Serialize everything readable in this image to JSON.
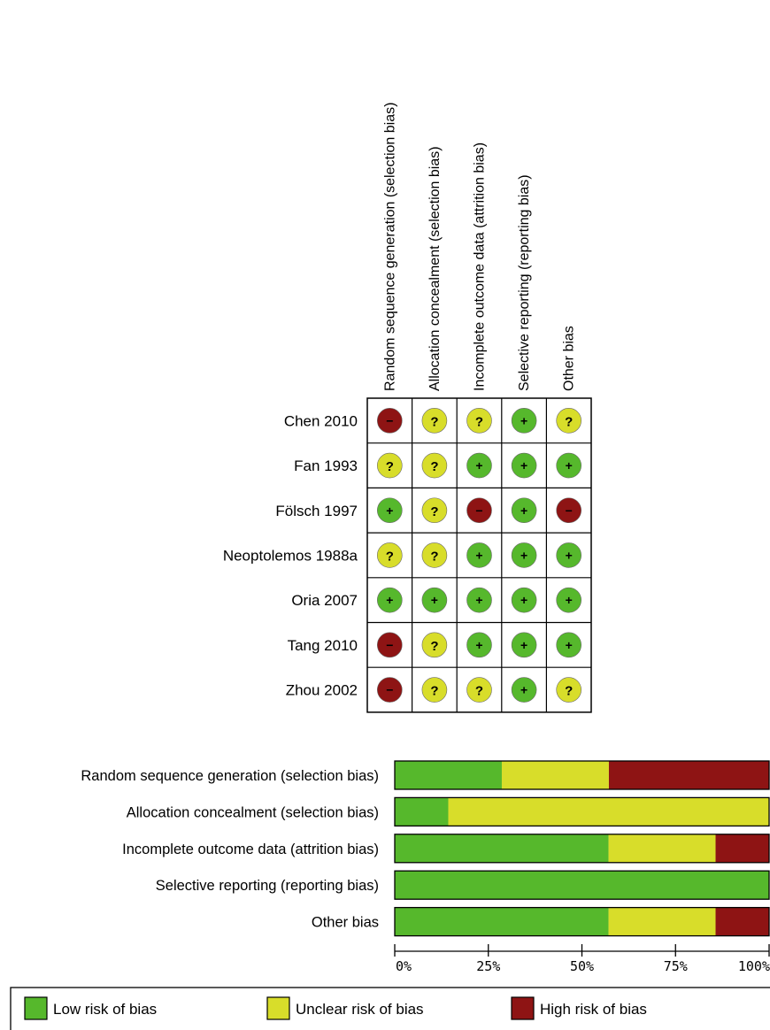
{
  "chart_data": [
    {
      "type": "table",
      "columns": [
        "Random sequence generation (selection bias)",
        "Allocation concealment (selection bias)",
        "Incomplete outcome data (attrition bias)",
        "Selective reporting (reporting bias)",
        "Other bias"
      ],
      "rows": [
        {
          "study": "Chen 2010",
          "ratings": [
            "high",
            "unclear",
            "unclear",
            "low",
            "unclear"
          ]
        },
        {
          "study": "Fan 1993",
          "ratings": [
            "unclear",
            "unclear",
            "low",
            "low",
            "low"
          ]
        },
        {
          "study": "Fölsch 1997",
          "ratings": [
            "low",
            "unclear",
            "high",
            "low",
            "high"
          ]
        },
        {
          "study": "Neoptolemos 1988a",
          "ratings": [
            "unclear",
            "unclear",
            "low",
            "low",
            "low"
          ]
        },
        {
          "study": "Oria 2007",
          "ratings": [
            "low",
            "low",
            "low",
            "low",
            "low"
          ]
        },
        {
          "study": "Tang 2010",
          "ratings": [
            "high",
            "unclear",
            "low",
            "low",
            "low"
          ]
        },
        {
          "study": "Zhou 2002",
          "ratings": [
            "high",
            "unclear",
            "unclear",
            "low",
            "unclear"
          ]
        }
      ],
      "symbols": {
        "low": "+",
        "unclear": "?",
        "high": "−"
      }
    },
    {
      "type": "bar",
      "orientation": "horizontal",
      "stacked": true,
      "categories": [
        "Random sequence generation (selection bias)",
        "Allocation concealment (selection bias)",
        "Incomplete outcome data (attrition bias)",
        "Selective reporting (reporting bias)",
        "Other bias"
      ],
      "series": [
        {
          "key": "low",
          "values": [
            28.6,
            14.3,
            57.1,
            100,
            57.1
          ]
        },
        {
          "key": "unclear",
          "values": [
            28.6,
            85.7,
            28.6,
            0,
            28.6
          ]
        },
        {
          "key": "high",
          "values": [
            42.8,
            0,
            14.3,
            0,
            14.3
          ]
        }
      ],
      "xlim": [
        0,
        100
      ],
      "x_ticks": [
        "0%",
        "25%",
        "50%",
        "75%",
        "100%"
      ],
      "legend": {
        "placement": "bottom",
        "entries": [
          {
            "key": "low",
            "label": "Low risk of bias"
          },
          {
            "key": "unclear",
            "label": "Unclear risk of bias"
          },
          {
            "key": "high",
            "label": "High risk of bias"
          }
        ]
      }
    }
  ],
  "colors": {
    "low": "#56b82c",
    "unclear": "#d8dd2a",
    "high": "#8e1414",
    "border": "#000000"
  }
}
